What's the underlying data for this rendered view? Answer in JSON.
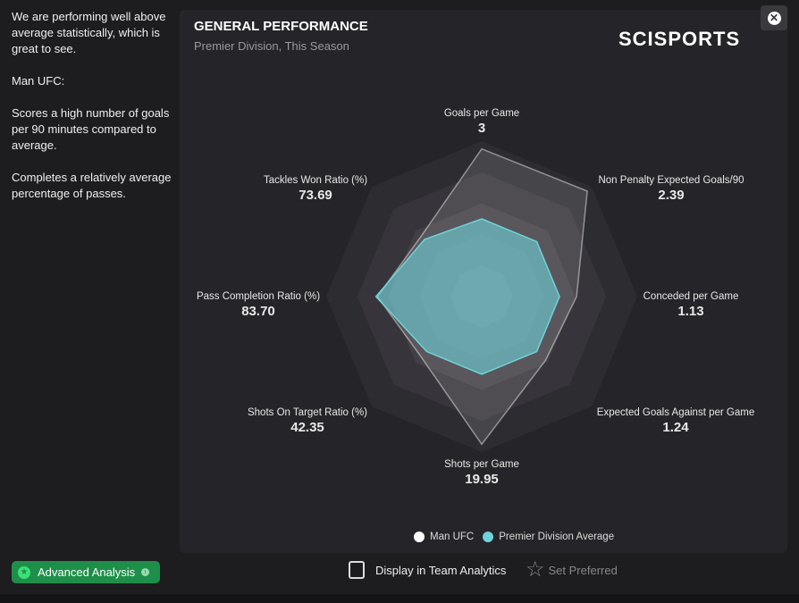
{
  "sidebar": {
    "text": "We are performing well above average statistically, which is great to see.\n\nMan UFC:\n\nScores a high number of goals per 90 minutes compared to average.\n\nCompletes a relatively average percentage of passes."
  },
  "panel": {
    "title": "GENERAL PERFORMANCE",
    "subtitle": "Premier Division, This Season",
    "logo": "SCISPORTS",
    "close_icon": "close-icon"
  },
  "chart_data": {
    "type": "radar",
    "axes": [
      {
        "label": "Goals per Game",
        "value": "3"
      },
      {
        "label": "Non Penalty Expected Goals/90",
        "value": "2.39"
      },
      {
        "label": "Conceded per Game",
        "value": "1.13"
      },
      {
        "label": "Expected Goals Against per Game",
        "value": "1.24"
      },
      {
        "label": "Shots per Game",
        "value": "19.95"
      },
      {
        "label": "Shots On Target Ratio (%)",
        "value": "42.35"
      },
      {
        "label": "Pass Completion Ratio (%)",
        "value": "83.70"
      },
      {
        "label": "Tackles Won Ratio (%)",
        "value": "73.69"
      }
    ],
    "rings": 5,
    "range": [
      0,
      1
    ],
    "series": [
      {
        "name": "Man UFC",
        "color": "#ffffff",
        "values": [
          0.95,
          0.96,
          0.61,
          0.58,
          0.95,
          0.55,
          0.67,
          0.55
        ]
      },
      {
        "name": "Premier Division Average",
        "color": "#6fd3da",
        "values": [
          0.5,
          0.5,
          0.5,
          0.5,
          0.5,
          0.5,
          0.68,
          0.52
        ]
      }
    ]
  },
  "footer": {
    "advanced_label": "Advanced Analysis",
    "display_label": "Display in Team Analytics",
    "preferred_label": "Set Preferred"
  }
}
